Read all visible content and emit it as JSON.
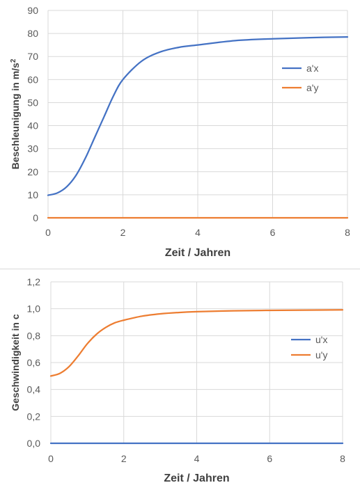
{
  "colors": {
    "blue": "#4472c4",
    "orange": "#ed7d31",
    "grid": "#d9d9d9",
    "text": "#595959"
  },
  "chart_data": [
    {
      "type": "line",
      "title": "",
      "xlabel": "Zeit / Jahren",
      "ylabel_main": "Beschleunigung in m/s",
      "ylabel_sup": "2",
      "xlim": [
        0,
        8
      ],
      "ylim": [
        0,
        90
      ],
      "xticks": [
        "0",
        "2",
        "4",
        "6",
        "8"
      ],
      "yticks": [
        "0",
        "10",
        "20",
        "30",
        "40",
        "50",
        "60",
        "70",
        "80",
        "90"
      ],
      "grid": true,
      "legend": "right",
      "series": [
        {
          "name": "a'x",
          "color": "#4472c4",
          "x": [
            0,
            0.25,
            0.5,
            0.75,
            1.0,
            1.25,
            1.5,
            1.75,
            2.0,
            2.5,
            3.0,
            3.5,
            4.0,
            5.0,
            6.0,
            7.0,
            8.0
          ],
          "y": [
            9.8,
            10.8,
            13.5,
            18.5,
            26,
            35,
            44,
            53,
            60,
            68,
            72,
            74,
            75,
            76.9,
            77.7,
            78.2,
            78.5
          ]
        },
        {
          "name": "a'y",
          "color": "#ed7d31",
          "x": [
            0,
            8
          ],
          "y": [
            0,
            0
          ]
        }
      ]
    },
    {
      "type": "line",
      "title": "",
      "xlabel": "Zeit / Jahren",
      "ylabel": "Geschwindigkeit in c",
      "xlim": [
        0,
        8
      ],
      "ylim": [
        0,
        1.2
      ],
      "xticks": [
        "0",
        "2",
        "4",
        "6",
        "8"
      ],
      "yticks": [
        "0,0",
        "0,2",
        "0,4",
        "0,6",
        "0,8",
        "1,0",
        "1,2"
      ],
      "grid": true,
      "legend": "right",
      "series": [
        {
          "name": "u'x",
          "color": "#4472c4",
          "x": [
            0,
            8
          ],
          "y": [
            0,
            0
          ]
        },
        {
          "name": "u'y",
          "color": "#ed7d31",
          "x": [
            0,
            0.25,
            0.5,
            0.75,
            1.0,
            1.25,
            1.5,
            1.75,
            2.0,
            2.5,
            3.0,
            3.5,
            4.0,
            5.0,
            6.0,
            7.0,
            8.0
          ],
          "y": [
            0.5,
            0.52,
            0.57,
            0.65,
            0.74,
            0.81,
            0.86,
            0.895,
            0.915,
            0.945,
            0.962,
            0.972,
            0.978,
            0.985,
            0.988,
            0.99,
            0.992
          ]
        }
      ]
    }
  ]
}
